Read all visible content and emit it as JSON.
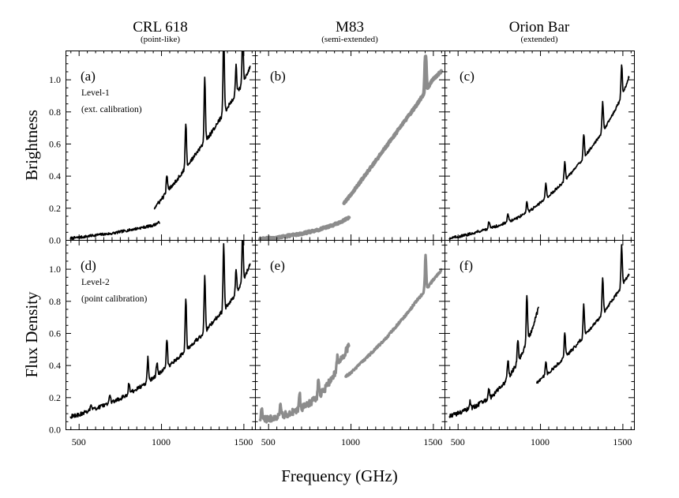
{
  "chart_data": {
    "type": "line",
    "layout": "2 rows x 3 columns grid",
    "xlabel": "Frequency (GHz)",
    "xlim": [
      420,
      1570
    ],
    "xticks": [
      500,
      1000,
      1500
    ],
    "columns": [
      {
        "title": "CRL 618",
        "subtitle": "(point-like)"
      },
      {
        "title": "M83",
        "subtitle": "(semi-extended)"
      },
      {
        "title": "Orion Bar",
        "subtitle": "(extended)"
      }
    ],
    "rows": [
      {
        "ylabel": "Brightness",
        "ylim": [
          0.0,
          1.18
        ],
        "yticks": [
          "0.0",
          "0.2",
          "0.4",
          "0.6",
          "0.8",
          "1.0"
        ]
      },
      {
        "ylabel": "Flux Density",
        "ylim": [
          0.0,
          1.18
        ],
        "yticks": [
          "0.0",
          "0.2",
          "0.4",
          "0.6",
          "0.8",
          "1.0"
        ]
      }
    ],
    "colors": {
      "dark": "#000000",
      "gray": "#8c8c8c"
    },
    "panels": [
      {
        "label": "(a)",
        "row": 0,
        "col": 0,
        "color": "dark",
        "width": 1.7,
        "notes": [
          "Level-1",
          "(ext. calibration)"
        ],
        "segments": [
          {
            "x": [
              450,
              500,
              550,
              600,
              650,
              700,
              750,
              800,
              850,
              900,
              950,
              990
            ],
            "y": [
              0.01,
              0.015,
              0.022,
              0.03,
              0.035,
              0.04,
              0.05,
              0.06,
              0.07,
              0.08,
              0.09,
              0.11
            ],
            "noise": 0.008
          },
          {
            "x": [
              960,
              1000,
              1050,
              1100,
              1150,
              1200,
              1250,
              1300,
              1350,
              1400,
              1450,
              1500,
              1540
            ],
            "y": [
              0.2,
              0.25,
              0.32,
              0.38,
              0.45,
              0.52,
              0.59,
              0.66,
              0.74,
              0.82,
              0.9,
              0.98,
              1.08
            ],
            "noise": 0.012,
            "lines": [
              [
                1035,
                0.1
              ],
              [
                1150,
                0.28
              ],
              [
                1265,
                0.4
              ],
              [
                1380,
                0.5
              ],
              [
                1495,
                0.3
              ],
              [
                1455,
                0.18
              ]
            ]
          }
        ]
      },
      {
        "label": "(b)",
        "row": 0,
        "col": 1,
        "color": "gray",
        "width": 4.5,
        "notes": [],
        "segments": [
          {
            "x": [
              450,
              500,
              550,
              600,
              650,
              700,
              750,
              800,
              850,
              900,
              950,
              990
            ],
            "y": [
              0.005,
              0.01,
              0.015,
              0.022,
              0.03,
              0.038,
              0.05,
              0.062,
              0.078,
              0.095,
              0.115,
              0.14
            ],
            "noise": 0.006
          },
          {
            "x": [
              960,
              1000,
              1050,
              1100,
              1150,
              1200,
              1250,
              1300,
              1350,
              1400,
              1450,
              1500,
              1550
            ],
            "y": [
              0.23,
              0.28,
              0.35,
              0.42,
              0.49,
              0.56,
              0.63,
              0.7,
              0.77,
              0.84,
              0.92,
              1.0,
              1.05
            ],
            "noise": 0.006,
            "lines": [
              [
                1455,
                0.22
              ]
            ]
          }
        ]
      },
      {
        "label": "(c)",
        "row": 0,
        "col": 2,
        "color": "dark",
        "width": 1.7,
        "notes": [],
        "segments": [
          {
            "x": [
              450,
              500,
              550,
              600,
              650,
              700,
              750,
              800,
              850,
              900,
              950,
              1000,
              1050,
              1100,
              1150,
              1200,
              1250,
              1300,
              1350,
              1400,
              1450,
              1500,
              1540
            ],
            "y": [
              0.01,
              0.02,
              0.03,
              0.045,
              0.06,
              0.075,
              0.09,
              0.11,
              0.13,
              0.16,
              0.19,
              0.23,
              0.27,
              0.32,
              0.37,
              0.43,
              0.49,
              0.56,
              0.63,
              0.71,
              0.8,
              0.9,
              1.02
            ],
            "noise": 0.008,
            "lines": [
              [
                690,
                0.04
              ],
              [
                805,
                0.05
              ],
              [
                920,
                0.07
              ],
              [
                1035,
                0.1
              ],
              [
                1150,
                0.12
              ],
              [
                1265,
                0.15
              ],
              [
                1380,
                0.18
              ],
              [
                1495,
                0.2
              ]
            ]
          }
        ]
      },
      {
        "label": "(d)",
        "row": 1,
        "col": 0,
        "color": "dark",
        "width": 1.7,
        "notes": [
          "Level-2",
          "(point calibration)"
        ],
        "segments": [
          {
            "x": [
              450,
              500,
              550,
              600,
              650,
              700,
              750,
              800,
              850,
              900,
              950,
              1000,
              1050,
              1100,
              1150,
              1200,
              1250,
              1300,
              1350,
              1400,
              1450,
              1500,
              1540
            ],
            "y": [
              0.08,
              0.09,
              0.11,
              0.13,
              0.15,
              0.17,
              0.19,
              0.22,
              0.25,
              0.28,
              0.32,
              0.36,
              0.4,
              0.44,
              0.49,
              0.54,
              0.59,
              0.65,
              0.71,
              0.77,
              0.84,
              0.93,
              1.03
            ],
            "noise": 0.012,
            "lines": [
              [
                575,
                0.04
              ],
              [
                690,
                0.05
              ],
              [
                805,
                0.07
              ],
              [
                920,
                0.15
              ],
              [
                975,
                0.08
              ],
              [
                1035,
                0.17
              ],
              [
                1150,
                0.33
              ],
              [
                1265,
                0.35
              ],
              [
                1380,
                0.4
              ],
              [
                1495,
                0.3
              ],
              [
                1455,
                0.15
              ]
            ]
          }
        ]
      },
      {
        "label": "(e)",
        "row": 1,
        "col": 1,
        "color": "gray",
        "width": 3.2,
        "notes": [],
        "segments": [
          {
            "x": [
              450,
              500,
              550,
              600,
              650,
              700,
              750,
              800,
              850,
              900,
              950,
              990
            ],
            "y": [
              0.06,
              0.065,
              0.075,
              0.09,
              0.11,
              0.13,
              0.16,
              0.2,
              0.26,
              0.34,
              0.45,
              0.52
            ],
            "noise": 0.022,
            "lines": [
              [
                460,
                0.06
              ],
              [
                575,
                0.08
              ],
              [
                690,
                0.1
              ],
              [
                805,
                0.1
              ],
              [
                920,
                0.08
              ]
            ]
          },
          {
            "x": [
              970,
              1000,
              1050,
              1100,
              1150,
              1200,
              1250,
              1300,
              1350,
              1400,
              1450,
              1500,
              1550
            ],
            "y": [
              0.33,
              0.35,
              0.4,
              0.45,
              0.5,
              0.55,
              0.61,
              0.67,
              0.73,
              0.8,
              0.86,
              0.93,
              0.99
            ],
            "noise": 0.007,
            "lines": [
              [
                1455,
                0.22
              ]
            ]
          }
        ]
      },
      {
        "label": "(f)",
        "row": 1,
        "col": 2,
        "color": "dark",
        "width": 1.7,
        "notes": [],
        "segments": [
          {
            "x": [
              450,
              500,
              550,
              600,
              650,
              700,
              750,
              800,
              850,
              900,
              950,
              990
            ],
            "y": [
              0.08,
              0.1,
              0.12,
              0.14,
              0.17,
              0.2,
              0.25,
              0.31,
              0.39,
              0.49,
              0.62,
              0.75
            ],
            "noise": 0.014,
            "lines": [
              [
                575,
                0.05
              ],
              [
                690,
                0.06
              ],
              [
                805,
                0.12
              ],
              [
                865,
                0.14
              ],
              [
                920,
                0.3
              ]
            ]
          },
          {
            "x": [
              980,
              1000,
              1050,
              1100,
              1150,
              1200,
              1250,
              1300,
              1350,
              1400,
              1450,
              1500,
              1540
            ],
            "y": [
              0.29,
              0.31,
              0.35,
              0.4,
              0.45,
              0.5,
              0.56,
              0.62,
              0.68,
              0.75,
              0.82,
              0.9,
              0.97
            ],
            "noise": 0.01,
            "lines": [
              [
                1035,
                0.08
              ],
              [
                1150,
                0.15
              ],
              [
                1265,
                0.2
              ],
              [
                1380,
                0.22
              ],
              [
                1495,
                0.25
              ]
            ]
          }
        ]
      }
    ]
  }
}
